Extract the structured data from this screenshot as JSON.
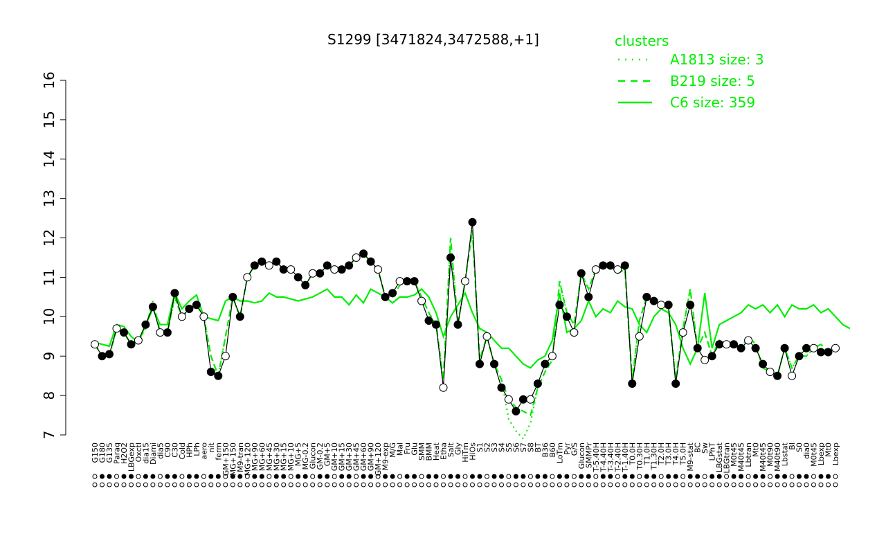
{
  "chart_data": {
    "type": "line",
    "title": "S1299 [3471824,3472588,+1]",
    "xlabel": "",
    "ylabel": "",
    "ylim": [
      7,
      16
    ],
    "y_ticks": [
      "7",
      "8",
      "9",
      "10",
      "11",
      "12",
      "13",
      "14",
      "15",
      "16"
    ],
    "grid": false,
    "legend": {
      "title": "clusters",
      "placement": "top-right",
      "color": "#00ee00",
      "entries": [
        {
          "label": "A1813 size: 3",
          "style": "dotted"
        },
        {
          "label": "B219 size: 5",
          "style": "dashed"
        },
        {
          "label": "C6 size: 359",
          "style": "solid"
        }
      ]
    },
    "x_labels": [
      "G150",
      "G180",
      "G135",
      "Paraq",
      "H2O2",
      "LBGexp",
      "Oxctl",
      "dia15",
      "Diami",
      "dia5",
      "C90",
      "C30",
      "Cold",
      "HPh",
      "LPh",
      "aero",
      "nit",
      "ferm",
      "GM+150",
      "MG+150",
      "M9-tran",
      "MG+120",
      "MG+90",
      "MG+60",
      "MG+45",
      "MG+30",
      "MG+15",
      "MG+10",
      "MG+5",
      "MG-0.2",
      "Glucon",
      "GM-0.2",
      "GM+5",
      "GM+10",
      "GM+15",
      "GM+30",
      "GM+45",
      "GM+60",
      "GM+90",
      "GM+120",
      "M9-exp",
      "M/G",
      "Mal",
      "Fru",
      "Glu",
      "SMM",
      "BMM",
      "Heat",
      "Etha",
      "Salt",
      "Gly",
      "HiTm",
      "HiOs",
      "S1",
      "S2",
      "S3",
      "S4",
      "S5",
      "S6",
      "S7",
      "S8",
      "BT",
      "B36",
      "B60",
      "LoTm",
      "Pyr",
      "G/S",
      "Glucon",
      "SMMPr",
      "T-5.40H",
      "T-4.40H",
      "T-3.40H",
      "T-2.40H",
      "T-1.40H",
      "T0.0H",
      "T0.30H",
      "T1.0H",
      "T1.30H",
      "T2.0H",
      "T3.0H",
      "T4.0H",
      "T5.0H",
      "M9-stat",
      "BC",
      "Sw",
      "LPhT",
      "LBGstat",
      "LBGtran",
      "M0t45",
      "M40t45",
      "Lbtran",
      "Mt0",
      "M40t45",
      "M0t90",
      "M40t90",
      "Lbstat",
      "BI",
      "S0",
      "dia0",
      "M0t45",
      "Lbexp",
      "Mt0",
      "Lbexp"
    ],
    "series": [
      {
        "line_style": "solid",
        "color": "#00ee00",
        "values": [
          9.35,
          9.3,
          9.25,
          9.8,
          9.75,
          9.5,
          9.35,
          9.8,
          10.2,
          9.8,
          9.8,
          10.6,
          10.2,
          10.4,
          10.55,
          10.0,
          9.95,
          9.9,
          10.4,
          10.5,
          10.4,
          10.4,
          10.35,
          10.4,
          10.6,
          10.5,
          10.5,
          10.45,
          10.4,
          10.45,
          10.5,
          10.6,
          10.7,
          10.5,
          10.5,
          10.3,
          10.55,
          10.35,
          10.7,
          10.6,
          10.5,
          10.35,
          10.5,
          10.5,
          10.55,
          10.7,
          10.5,
          10.1,
          9.5,
          10.0,
          10.3,
          10.6,
          10.1,
          9.7,
          9.6,
          9.4,
          9.2,
          9.2,
          9.0,
          8.8,
          8.7,
          8.9,
          9.0,
          9.4,
          10.6,
          9.6,
          9.7,
          9.9,
          10.4,
          10.0,
          10.2,
          10.1,
          10.4,
          10.25,
          10.2,
          9.8,
          9.6,
          10.0,
          10.2,
          10.1,
          9.8,
          9.2,
          8.8,
          9.2,
          10.6,
          9.2,
          9.8,
          9.9,
          10.0,
          10.1,
          10.3,
          10.2,
          10.3,
          10.1,
          10.3,
          10.0,
          10.3,
          10.2,
          10.2,
          10.3,
          10.1,
          10.2,
          10.0,
          9.8,
          9.7
        ]
      },
      {
        "line_style": "dashed",
        "color": "#00ee00",
        "values": [
          9.3,
          9.0,
          9.0,
          9.7,
          9.6,
          9.3,
          9.4,
          9.7,
          10.4,
          9.6,
          9.6,
          10.5,
          10.0,
          10.2,
          10.3,
          10.0,
          9.0,
          8.5,
          9.5,
          10.5,
          10.0,
          11.0,
          11.3,
          11.4,
          11.3,
          11.4,
          11.2,
          11.2,
          11.0,
          10.8,
          11.1,
          11.1,
          11.3,
          11.2,
          11.2,
          11.3,
          11.5,
          11.6,
          11.4,
          11.2,
          10.5,
          10.5,
          10.8,
          10.9,
          10.9,
          10.5,
          10.1,
          9.8,
          8.4,
          12.0,
          9.8,
          10.9,
          12.2,
          8.9,
          9.5,
          8.8,
          8.4,
          7.9,
          7.7,
          7.6,
          7.5,
          8.2,
          8.6,
          8.9,
          10.9,
          10.1,
          9.8,
          11.1,
          10.7,
          11.2,
          11.3,
          11.3,
          11.1,
          11.2,
          8.4,
          9.9,
          10.5,
          10.4,
          10.3,
          10.2,
          8.4,
          9.7,
          10.7,
          9.2,
          9.6,
          9.0,
          9.4,
          9.3,
          9.3,
          9.2,
          9.5,
          9.3,
          8.7,
          8.6,
          8.5,
          9.2,
          8.7,
          9.0,
          9.0,
          9.2,
          9.3,
          9.1,
          9.3
        ]
      },
      {
        "line_style": "dotted",
        "color": "#00ee00",
        "values": [
          9.3,
          9.0,
          9.0,
          9.7,
          9.6,
          9.3,
          9.4,
          9.7,
          10.4,
          9.6,
          9.6,
          10.5,
          10.0,
          10.2,
          10.3,
          10.0,
          9.0,
          8.5,
          9.5,
          10.5,
          10.0,
          11.0,
          11.3,
          11.4,
          11.3,
          11.4,
          11.2,
          11.2,
          11.0,
          10.8,
          11.1,
          11.1,
          11.3,
          11.2,
          11.2,
          11.3,
          11.5,
          11.6,
          11.4,
          11.2,
          10.5,
          10.5,
          10.8,
          10.9,
          10.9,
          10.5,
          10.1,
          9.8,
          8.4,
          12.0,
          9.8,
          10.9,
          12.2,
          8.9,
          9.5,
          8.8,
          8.4,
          7.4,
          7.1,
          6.9,
          7.3,
          8.2,
          8.6,
          8.9,
          10.9,
          10.1,
          9.8,
          11.1,
          10.7,
          11.2,
          11.3,
          11.3,
          11.1,
          11.2,
          8.4,
          9.9,
          10.5,
          10.4,
          10.3,
          10.2,
          8.4,
          9.7,
          10.7,
          9.2,
          9.6,
          9.0,
          9.4,
          9.3,
          9.3,
          9.2,
          9.5,
          9.3,
          8.7,
          8.6,
          8.5,
          9.2,
          8.7,
          9.0,
          9.0,
          9.2,
          9.3,
          9.1,
          9.3
        ]
      },
      {
        "line_style": "solid",
        "color": "#000000",
        "markers": true,
        "values": [
          9.3,
          9.0,
          9.05,
          9.7,
          9.6,
          9.3,
          9.4,
          9.8,
          10.25,
          9.6,
          9.6,
          10.6,
          10.0,
          10.2,
          10.3,
          10.0,
          8.6,
          8.5,
          9.0,
          10.5,
          10.0,
          11.0,
          11.3,
          11.4,
          11.3,
          11.4,
          11.2,
          11.2,
          11.0,
          10.8,
          11.1,
          11.1,
          11.3,
          11.2,
          11.2,
          11.3,
          11.5,
          11.6,
          11.4,
          11.2,
          10.5,
          10.6,
          10.9,
          10.9,
          10.9,
          10.4,
          9.9,
          9.8,
          8.2,
          11.5,
          9.8,
          10.9,
          12.4,
          8.8,
          9.5,
          8.8,
          8.2,
          7.9,
          7.6,
          7.9,
          7.9,
          8.3,
          8.8,
          9.0,
          10.3,
          10.0,
          9.6,
          11.1,
          10.5,
          11.2,
          11.3,
          11.3,
          11.2,
          11.3,
          8.3,
          9.5,
          10.5,
          10.4,
          10.3,
          10.3,
          8.3,
          9.6,
          10.3,
          9.2,
          8.9,
          9.0,
          9.3,
          9.3,
          9.3,
          9.2,
          9.4,
          9.2,
          8.8,
          8.6,
          8.5,
          9.2,
          8.5,
          9.0,
          9.2,
          9.2,
          9.1,
          9.1,
          9.2
        ]
      }
    ]
  }
}
